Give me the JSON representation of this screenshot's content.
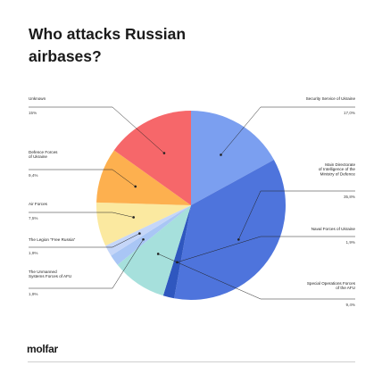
{
  "title": "Who attacks Russian airbases?",
  "logo": "molfar",
  "chart_data": {
    "type": "pie",
    "title": "Who attacks Russian airbases?",
    "slices": [
      {
        "label": "Security Service of Ukraine",
        "value": 17.0,
        "value_text": "17,0%",
        "color": "#7b9ff0"
      },
      {
        "label": "Main Directorate of Intelligence of the Ministry of Defence",
        "value": 35.8,
        "value_text": "35,8%",
        "color": "#4e74dc"
      },
      {
        "label": "Naval Forces of Ukraine",
        "value": 1.9,
        "value_text": "1,9%",
        "color": "#2f57bf"
      },
      {
        "label": "Special Operations Forces of the AFU",
        "value": 9.4,
        "value_text": "9,4%",
        "color": "#a6e0dc"
      },
      {
        "label": "The Unmanned Systems Forces of AFU",
        "value": 1.9,
        "value_text": "1,9%",
        "color": "#a9c6f5"
      },
      {
        "label": "The Legion \"Free Russia\"",
        "value": 1.9,
        "value_text": "1,9%",
        "color": "#c5d6f8"
      },
      {
        "label": "Air Forces",
        "value": 7.5,
        "value_text": "7,5%",
        "color": "#fbe9a0"
      },
      {
        "label": "Defence Forces of Ukraine",
        "value": 9.4,
        "value_text": "9,4%",
        "color": "#fdb04f"
      },
      {
        "label": "Unknown",
        "value": 15.1,
        "value_text": "15%",
        "color": "#f6676a"
      }
    ]
  }
}
